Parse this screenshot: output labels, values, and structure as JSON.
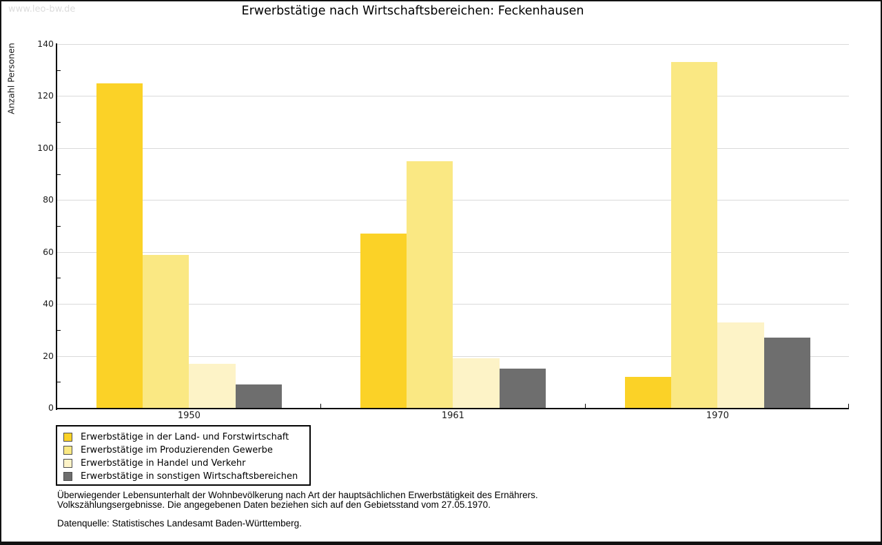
{
  "watermark": "www.leo-bw.de",
  "title": "Erwerbstätige nach Wirtschaftsbereichen: Feckenhausen",
  "chart_data": {
    "type": "bar",
    "title": "Erwerbstätige nach Wirtschaftsbereichen: Feckenhausen",
    "xlabel": "",
    "ylabel": "Anzahl Personen",
    "ylim": [
      0,
      140
    ],
    "ytick_step": 20,
    "yminor_step": 10,
    "grid": true,
    "legend_position": "bottom-left",
    "categories": [
      "1950",
      "1961",
      "1970"
    ],
    "series": [
      {
        "name": "Erwerbstätige in der Land- und Forstwirtschaft",
        "color": "#fbd227",
        "values": [
          125,
          67,
          12
        ]
      },
      {
        "name": "Erwerbstätige im Produzierenden Gewerbe",
        "color": "#fae883",
        "values": [
          59,
          95,
          133
        ]
      },
      {
        "name": "Erwerbstätige in Handel und Verkehr",
        "color": "#fdf3c7",
        "values": [
          17,
          19,
          33
        ]
      },
      {
        "name": "Erwerbstätige in sonstigen Wirtschaftsbereichen",
        "color": "#6e6e6e",
        "values": [
          9,
          15,
          27
        ]
      }
    ]
  },
  "footer": {
    "line1": "Überwiegender Lebensunterhalt der Wohnbevölkerung nach Art der hauptsächlichen Erwerbstätigkeit des Ernährers.",
    "line2": "Volkszählungsergebnisse. Die angegebenen Daten beziehen sich auf den Gebietsstand vom 27.05.1970.",
    "source": "Datenquelle: Statistisches Landesamt Baden-Württemberg."
  },
  "colors": {
    "grid": "#d9d9d9",
    "axis": "#000000",
    "watermark": "#dcdcdc",
    "swatch_border": "#4d4d4d"
  }
}
